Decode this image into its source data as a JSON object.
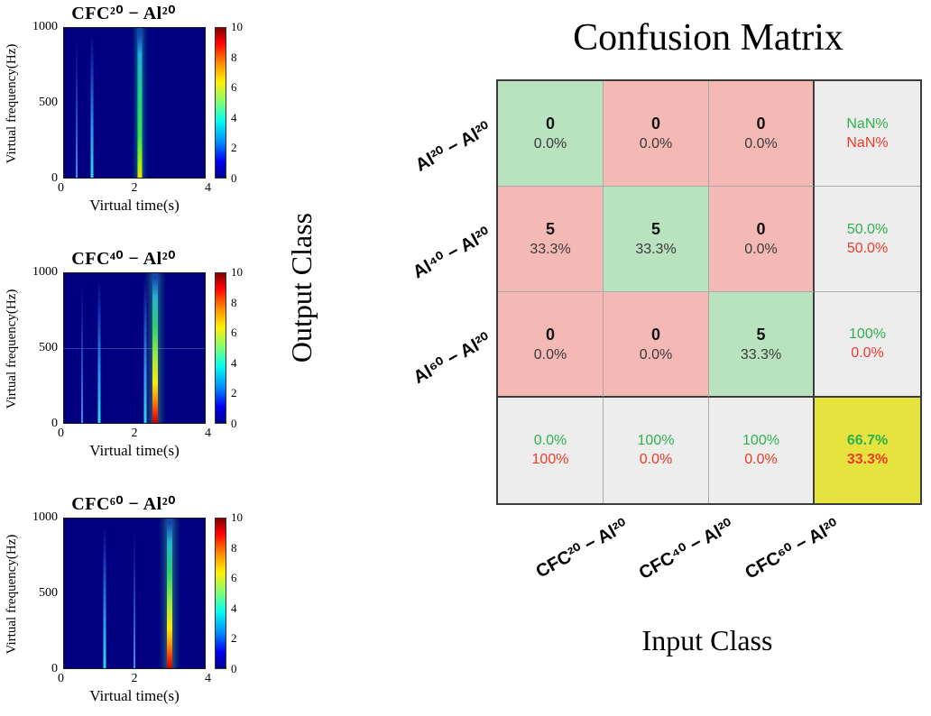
{
  "chart_data": [
    {
      "type": "table",
      "title": "Confusion Matrix",
      "xlabel": "Input Class",
      "ylabel": "Output Class",
      "x_categories": [
        "CFC²⁰ − Al²⁰",
        "CFC⁴⁰ − Al²⁰",
        "CFC⁶⁰ − Al²⁰"
      ],
      "y_categories": [
        "Al²⁰ − Al²⁰",
        "Al⁴⁰ − Al²⁰",
        "Al⁶⁰ − Al²⁰"
      ],
      "counts": [
        [
          0,
          0,
          0
        ],
        [
          5,
          5,
          0
        ],
        [
          0,
          0,
          5
        ]
      ],
      "count_pcts": [
        [
          "0.0%",
          "0.0%",
          "0.0%"
        ],
        [
          "33.3%",
          "33.3%",
          "0.0%"
        ],
        [
          "0.0%",
          "0.0%",
          "33.3%"
        ]
      ],
      "row_summary": [
        [
          "NaN%",
          "NaN%"
        ],
        [
          "50.0%",
          "50.0%"
        ],
        [
          "100%",
          "0.0%"
        ]
      ],
      "col_summary": [
        [
          "0.0%",
          "100%"
        ],
        [
          "100%",
          "0.0%"
        ],
        [
          "100%",
          "0.0%"
        ]
      ],
      "overall": [
        "66.7%",
        "33.3%"
      ],
      "colors": {
        "diagonal_cell": "#b9e2bf",
        "offdiagonal_cell": "#f5b9b5",
        "summary_cell": "#ededed",
        "total_cell": "#e6e23e",
        "positive_text": "#2eb24c",
        "negative_text": "#ee3a28"
      }
    },
    {
      "type": "heatmap",
      "title": "CFC²⁰ − Al²⁰",
      "xlabel": "Virtual time(s)",
      "ylabel": "Virtual frequency(Hz)",
      "xlim": [
        0,
        4
      ],
      "ylim": [
        0,
        1000
      ],
      "x_ticks": [
        "0",
        "2",
        "4"
      ],
      "y_ticks": [
        "1000",
        "500",
        "0"
      ],
      "colorbar_ticks": [
        "10",
        "8",
        "6",
        "4",
        "2",
        "0"
      ],
      "colorbar_range": [
        0,
        10
      ],
      "events": [
        {
          "time": 0.35,
          "strength": "faint"
        },
        {
          "time": 0.8,
          "strength": "medium"
        },
        {
          "time": 2.15,
          "strength": "strong"
        }
      ]
    },
    {
      "type": "heatmap",
      "title": "CFC⁴⁰ − Al²⁰",
      "xlabel": "Virtual time(s)",
      "ylabel": "Virtual frequency(Hz)",
      "xlim": [
        0,
        4
      ],
      "ylim": [
        0,
        1000
      ],
      "x_ticks": [
        "0",
        "2",
        "4"
      ],
      "y_ticks": [
        "1000",
        "500",
        "0"
      ],
      "colorbar_ticks": [
        "10",
        "8",
        "6",
        "4",
        "2",
        "0"
      ],
      "colorbar_range": [
        0,
        10
      ],
      "events": [
        {
          "time": 0.5,
          "strength": "faint"
        },
        {
          "time": 1.0,
          "strength": "medium"
        },
        {
          "time": 2.3,
          "strength": "medium"
        },
        {
          "time": 2.6,
          "strength": "intense"
        }
      ]
    },
    {
      "type": "heatmap",
      "title": "CFC⁶⁰ − Al²⁰",
      "xlabel": "Virtual time(s)",
      "ylabel": "Virtual frequency(Hz)",
      "xlim": [
        0,
        4
      ],
      "ylim": [
        0,
        1000
      ],
      "x_ticks": [
        "0",
        "2",
        "4"
      ],
      "y_ticks": [
        "1000",
        "500",
        "0"
      ],
      "colorbar_ticks": [
        "10",
        "8",
        "6",
        "4",
        "2",
        "0"
      ],
      "colorbar_range": [
        0,
        10
      ],
      "events": [
        {
          "time": 1.15,
          "strength": "medium"
        },
        {
          "time": 2.0,
          "strength": "faint"
        },
        {
          "time": 3.0,
          "strength": "intense"
        }
      ]
    }
  ]
}
